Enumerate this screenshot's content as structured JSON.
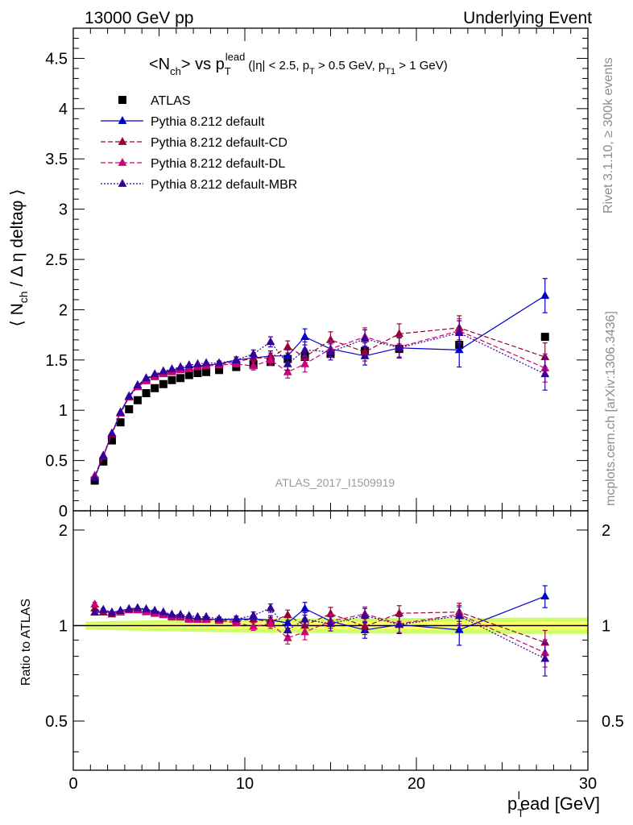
{
  "header": {
    "left": "13000 GeV pp",
    "right": "Underlying Event"
  },
  "side_labels": {
    "rivet": "Rivet 3.1.10, ≥ 300k events",
    "mcplots": "mcplots.cern.ch [arXiv:1306.3436]"
  },
  "analysis_id": "ATLAS_2017_I1509919",
  "title": {
    "main_a": "<N",
    "main_sub": "ch",
    "main_b": "> vs p",
    "main_sub_T": "T",
    "main_sup": "lead",
    "cuts_a": "(|η| < 2.5, p",
    "cuts_sub1": "T",
    "cuts_b": " > 0.5 GeV, p",
    "cuts_sub2": "T1",
    "cuts_c": " > 1 GeV)"
  },
  "legend": [
    {
      "label": "ATLAS",
      "marker": "square",
      "color": "#000000",
      "line": "none"
    },
    {
      "label": "Pythia 8.212 default",
      "marker": "triangle",
      "color": "#0000cc",
      "line": "solid"
    },
    {
      "label": "Pythia 8.212 default-CD",
      "marker": "triangle",
      "color": "#990033",
      "line": "dashed"
    },
    {
      "label": "Pythia 8.212 default-DL",
      "marker": "triangle",
      "color": "#cc0077",
      "line": "dashed"
    },
    {
      "label": "Pythia 8.212 default-MBR",
      "marker": "triangle",
      "color": "#330099",
      "line": "dotted"
    }
  ],
  "chart_data": [
    {
      "type": "scatter",
      "panel": "main",
      "ylabel": "⟨ N_ch / Δη deltaφ ⟩",
      "xlim": [
        0,
        30
      ],
      "ylim": [
        0,
        4.8
      ],
      "yticks": [
        "0",
        "0.5",
        "1",
        "1.5",
        "2",
        "2.5",
        "3",
        "3.5",
        "4",
        "4.5"
      ],
      "x": [
        1.25,
        1.75,
        2.25,
        2.75,
        3.25,
        3.75,
        4.25,
        4.75,
        5.25,
        5.75,
        6.25,
        6.75,
        7.25,
        7.75,
        8.5,
        9.5,
        10.5,
        11.5,
        12.5,
        13.5,
        15.0,
        17.0,
        19.0,
        22.5,
        27.5
      ],
      "series": [
        {
          "name": "ATLAS",
          "color": "#000000",
          "values": [
            0.3,
            0.49,
            0.7,
            0.88,
            1.01,
            1.1,
            1.17,
            1.22,
            1.26,
            1.3,
            1.32,
            1.35,
            1.37,
            1.38,
            1.4,
            1.43,
            1.45,
            1.48,
            1.51,
            1.53,
            1.56,
            1.59,
            1.61,
            1.65,
            1.73
          ]
        },
        {
          "name": "Pythia 8.212 default",
          "color": "#0000cc",
          "values": [
            0.33,
            0.54,
            0.77,
            0.98,
            1.14,
            1.25,
            1.31,
            1.35,
            1.38,
            1.4,
            1.42,
            1.43,
            1.44,
            1.45,
            1.46,
            1.5,
            1.52,
            1.54,
            1.54,
            1.73,
            1.61,
            1.54,
            1.62,
            1.6,
            2.14
          ],
          "err": [
            0.005,
            0.005,
            0.005,
            0.01,
            0.01,
            0.01,
            0.01,
            0.01,
            0.01,
            0.01,
            0.01,
            0.015,
            0.015,
            0.015,
            0.02,
            0.03,
            0.04,
            0.05,
            0.06,
            0.08,
            0.08,
            0.09,
            0.1,
            0.17,
            0.17
          ]
        },
        {
          "name": "Pythia 8.212 default-CD",
          "color": "#990033",
          "values": [
            0.34,
            0.54,
            0.76,
            0.97,
            1.13,
            1.24,
            1.3,
            1.34,
            1.37,
            1.39,
            1.41,
            1.42,
            1.44,
            1.45,
            1.46,
            1.48,
            1.52,
            1.52,
            1.63,
            1.53,
            1.7,
            1.58,
            1.76,
            1.82,
            1.53
          ],
          "err": [
            0.005,
            0.005,
            0.005,
            0.01,
            0.01,
            0.01,
            0.01,
            0.01,
            0.01,
            0.01,
            0.01,
            0.015,
            0.015,
            0.015,
            0.02,
            0.03,
            0.04,
            0.05,
            0.06,
            0.08,
            0.08,
            0.09,
            0.1,
            0.12,
            0.14
          ]
        },
        {
          "name": "Pythia 8.212 default-DL",
          "color": "#cc0077",
          "values": [
            0.35,
            0.55,
            0.77,
            0.97,
            1.13,
            1.23,
            1.29,
            1.33,
            1.36,
            1.38,
            1.4,
            1.41,
            1.43,
            1.44,
            1.45,
            1.46,
            1.44,
            1.5,
            1.38,
            1.46,
            1.61,
            1.73,
            1.63,
            1.79,
            1.42
          ],
          "err": [
            0.005,
            0.005,
            0.005,
            0.01,
            0.01,
            0.01,
            0.01,
            0.01,
            0.01,
            0.01,
            0.01,
            0.015,
            0.015,
            0.015,
            0.02,
            0.03,
            0.04,
            0.05,
            0.06,
            0.08,
            0.08,
            0.09,
            0.1,
            0.12,
            0.14
          ]
        },
        {
          "name": "Pythia 8.212 default-MBR",
          "color": "#330099",
          "values": [
            0.33,
            0.55,
            0.77,
            0.98,
            1.14,
            1.25,
            1.32,
            1.36,
            1.39,
            1.41,
            1.43,
            1.45,
            1.46,
            1.47,
            1.47,
            1.5,
            1.56,
            1.68,
            1.46,
            1.6,
            1.58,
            1.71,
            1.62,
            1.77,
            1.36
          ],
          "err": [
            0.005,
            0.005,
            0.005,
            0.01,
            0.01,
            0.01,
            0.01,
            0.01,
            0.01,
            0.01,
            0.01,
            0.015,
            0.015,
            0.015,
            0.02,
            0.03,
            0.04,
            0.05,
            0.06,
            0.08,
            0.08,
            0.09,
            0.1,
            0.12,
            0.16
          ]
        }
      ]
    },
    {
      "type": "scatter",
      "panel": "ratio",
      "ylabel": "Ratio to ATLAS",
      "xlabel_a": "p",
      "xlabel_sub": "T",
      "xlabel_sup": "l",
      "xlabel_b": "ead [GeV]",
      "xlim": [
        0,
        30
      ],
      "ylim": [
        0.35,
        2.3
      ],
      "yticks": [
        "0.5",
        "1",
        "2"
      ],
      "xticks": [
        "0",
        "10",
        "20",
        "30"
      ],
      "band_color": "#ccff66",
      "band_inner_color": "#ffff66",
      "ref_line_value": 1
    }
  ]
}
